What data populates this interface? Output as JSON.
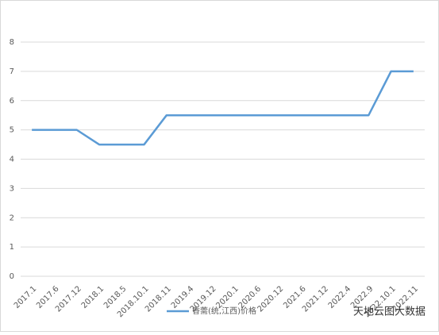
{
  "chart_data": {
    "type": "line",
    "categories": [
      "2017.1",
      "2017.6",
      "2017.12",
      "2018.1",
      "2018.5",
      "2018.10.1",
      "2018.11",
      "2019.4",
      "2019.12",
      "2020.1",
      "2020.6",
      "2020.12",
      "2021.6",
      "2021.12",
      "2022.4",
      "2022.9",
      "2022.10.1",
      "2022.11"
    ],
    "series": [
      {
        "name": "香薷(统,江西)价格",
        "color": "#5b9bd5",
        "values": [
          5,
          5,
          5,
          4.5,
          4.5,
          4.5,
          5.5,
          5.5,
          5.5,
          5.5,
          5.5,
          5.5,
          5.5,
          5.5,
          5.5,
          5.5,
          7,
          7
        ]
      }
    ],
    "ylim": [
      0,
      8
    ],
    "yticks": [
      0,
      1,
      2,
      3,
      4,
      5,
      6,
      7,
      8
    ],
    "grid": true,
    "legend": "bottom",
    "watermark": "天地云图大数据"
  }
}
